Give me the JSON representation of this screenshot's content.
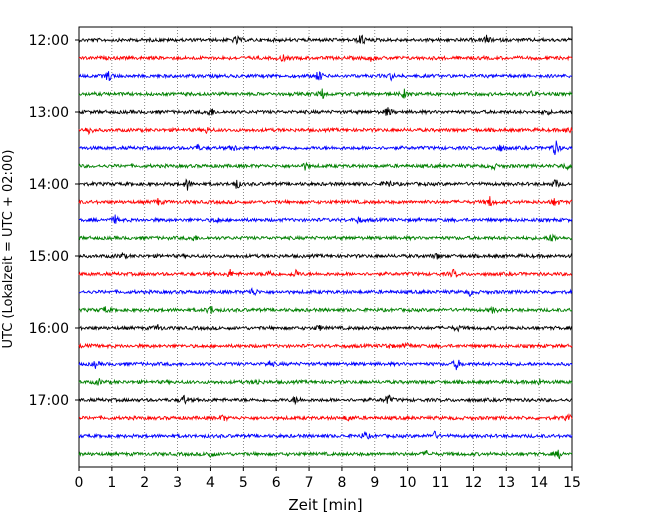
{
  "chart_data": {
    "type": "line",
    "title": "",
    "xlabel": "Zeit  [min]",
    "ylabel": "UTC (Lokalzeit = UTC + 02:00)",
    "xlim": [
      0,
      15
    ],
    "x_ticks": [
      "0",
      "1",
      "2",
      "3",
      "4",
      "5",
      "6",
      "7",
      "8",
      "9",
      "10",
      "11",
      "12",
      "13",
      "14",
      "15"
    ],
    "y_ticks": [
      "12:00",
      "13:00",
      "14:00",
      "15:00",
      "16:00",
      "17:00"
    ],
    "grid": "vertical dotted",
    "trace_colors": [
      "#000000",
      "#ff0000",
      "#0000ff",
      "#008000"
    ],
    "start": "12:00",
    "trace_count": 24,
    "minutes_per_trace": 15,
    "events": [
      [
        [
          4.8,
          4
        ],
        [
          8.6,
          7
        ],
        [
          12.4,
          4
        ]
      ],
      [
        [
          6.2,
          3
        ],
        [
          8.9,
          3
        ]
      ],
      [
        [
          0.9,
          6
        ],
        [
          7.3,
          6
        ],
        [
          9.5,
          3
        ]
      ],
      [
        [
          7.4,
          5
        ],
        [
          9.9,
          4
        ],
        [
          13.8,
          3
        ]
      ],
      [
        [
          4.0,
          5
        ],
        [
          9.4,
          5
        ],
        [
          14.2,
          3
        ]
      ],
      [
        [
          0.3,
          5
        ],
        [
          3.9,
          3
        ],
        [
          14.9,
          4
        ]
      ],
      [
        [
          3.6,
          3
        ],
        [
          4.7,
          3
        ],
        [
          12.8,
          4
        ],
        [
          14.5,
          8
        ]
      ],
      [
        [
          6.9,
          4
        ],
        [
          12.6,
          3
        ],
        [
          14.8,
          4
        ]
      ],
      [
        [
          3.3,
          6
        ],
        [
          4.8,
          5
        ],
        [
          9.4,
          5
        ],
        [
          14.5,
          5
        ]
      ],
      [
        [
          2.4,
          3
        ],
        [
          12.5,
          5
        ],
        [
          14.5,
          5
        ]
      ],
      [
        [
          1.1,
          4
        ],
        [
          4.2,
          3
        ],
        [
          8.5,
          3
        ]
      ],
      [
        [
          3.5,
          3
        ],
        [
          14.4,
          5
        ]
      ],
      [
        [
          1.3,
          3
        ],
        [
          10.9,
          3
        ]
      ],
      [
        [
          4.6,
          4
        ],
        [
          5.8,
          4
        ],
        [
          6.6,
          4
        ],
        [
          11.4,
          4
        ]
      ],
      [
        [
          5.3,
          5
        ],
        [
          11.9,
          3
        ]
      ],
      [
        [
          0.8,
          3
        ],
        [
          4.0,
          5
        ],
        [
          12.6,
          3
        ]
      ],
      [
        [
          2.4,
          3
        ],
        [
          7.3,
          3
        ],
        [
          11.5,
          3
        ]
      ],
      [
        [
          0.3,
          4
        ],
        [
          9.4,
          3
        ],
        [
          10.0,
          3
        ]
      ],
      [
        [
          0.5,
          3
        ],
        [
          5.8,
          3
        ],
        [
          11.5,
          6
        ]
      ],
      [
        [
          0.6,
          3
        ],
        [
          5.4,
          3
        ],
        [
          14.0,
          3
        ]
      ],
      [
        [
          3.2,
          5
        ],
        [
          6.6,
          4
        ],
        [
          9.4,
          6
        ]
      ],
      [
        [
          4.4,
          3
        ],
        [
          8.2,
          3
        ],
        [
          14.9,
          3
        ]
      ],
      [
        [
          8.7,
          4
        ],
        [
          10.8,
          5
        ]
      ],
      [
        [
          4.0,
          4
        ],
        [
          10.6,
          3
        ],
        [
          14.6,
          4
        ]
      ]
    ]
  }
}
